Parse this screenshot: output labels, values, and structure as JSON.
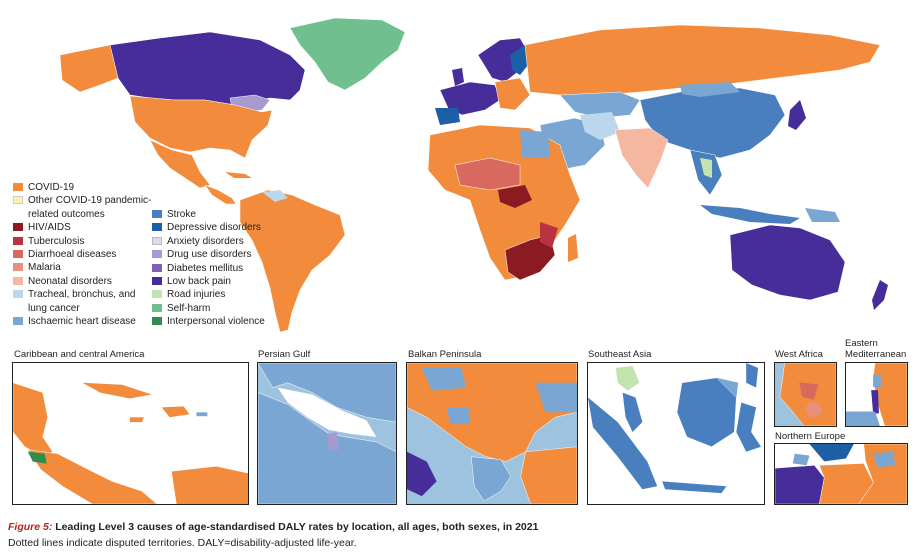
{
  "colors": {
    "ocean": "#ffffff",
    "covid": "#f28c3c",
    "other_covid": "#fbf3a4",
    "hiv": "#8b1a22",
    "tb": "#b8343f",
    "diarrhoea": "#d9695f",
    "malaria": "#e98f7c",
    "neonatal": "#f5b79f",
    "lung_cancer": "#bcd6ec",
    "ihd": "#7aa6d3",
    "stroke": "#4a7fbf",
    "depressive": "#1c5fa6",
    "anxiety": "#dcdcee",
    "drug_use": "#a79ad0",
    "diabetes": "#7f62b4",
    "low_back_pain": "#472d99",
    "road_injuries": "#c3e3b0",
    "self_harm": "#6fc08e",
    "interpersonal_violence": "#2f8b4e"
  },
  "legend": {
    "col1": [
      {
        "label": "COVID-19",
        "color": "#f28c3c"
      },
      {
        "label": "Other COVID-19 pandemic-",
        "label2": "related outcomes",
        "color": "#fbf3a4"
      },
      {
        "label": "HIV/AIDS",
        "color": "#8b1a22"
      },
      {
        "label": "Tuberculosis",
        "color": "#b8343f"
      },
      {
        "label": "Diarrhoeal diseases",
        "color": "#d9695f"
      },
      {
        "label": "Malaria",
        "color": "#e98f7c"
      },
      {
        "label": "Neonatal disorders",
        "color": "#f5b79f"
      },
      {
        "label": "Tracheal, bronchus, and",
        "label2": "lung cancer",
        "color": "#bcd6ec"
      },
      {
        "label": "Ischaemic heart disease",
        "color": "#7aa6d3"
      }
    ],
    "col2": [
      {
        "label": "Stroke",
        "color": "#4a7fbf"
      },
      {
        "label": "Depressive disorders",
        "color": "#1c5fa6"
      },
      {
        "label": "Anxiety disorders",
        "color": "#dcdcee"
      },
      {
        "label": "Drug use disorders",
        "color": "#a79ad0"
      },
      {
        "label": "Diabetes mellitus",
        "color": "#7f62b4"
      },
      {
        "label": "Low back pain",
        "color": "#472d99"
      },
      {
        "label": "Road injuries",
        "color": "#c3e3b0"
      },
      {
        "label": "Self-harm",
        "color": "#6fc08e"
      },
      {
        "label": "Interpersonal violence",
        "color": "#2f8b4e"
      }
    ]
  },
  "insets": {
    "caribbean": "Caribbean and central America",
    "persian_gulf": "Persian Gulf",
    "balkan": "Balkan Peninsula",
    "southeast_asia": "Southeast Asia",
    "west_africa": "West Africa",
    "eastern_med_1": "Eastern",
    "eastern_med_2": "Mediterranean",
    "northern_europe": "Northern Europe"
  },
  "caption": {
    "figure_label": "Figure 5:",
    "title": " Leading Level 3 causes of age-standardised DALY rates by location, all ages, both sexes, in 2021",
    "note": "Dotted lines indicate disputed territories. DALY=disability-adjusted life-year."
  }
}
